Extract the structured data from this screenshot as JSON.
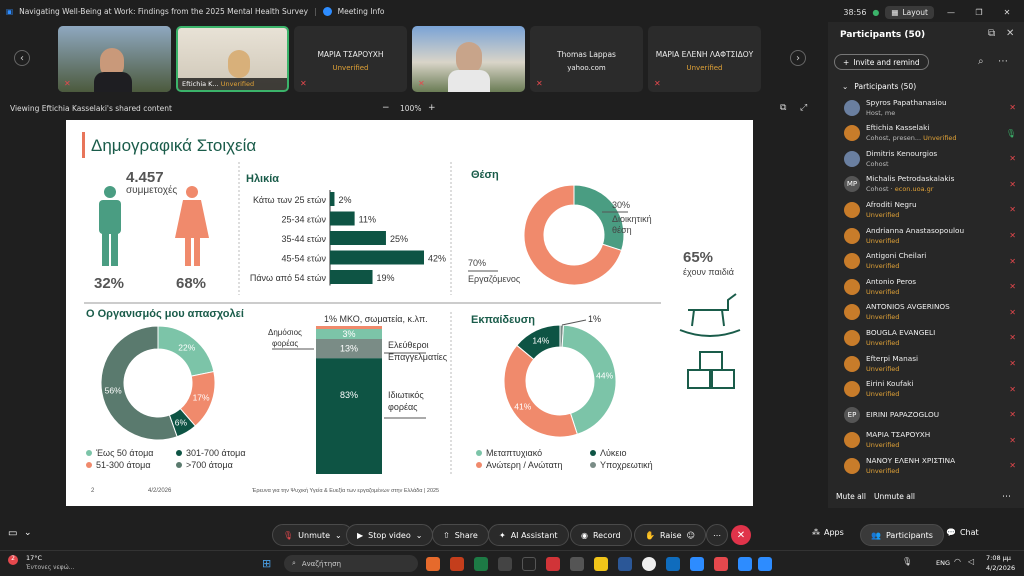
{
  "titlebar": {
    "meeting_title": "Navigating Well-Being at Work: Findings from the 2025 Mental Health Survey",
    "meeting_info": "Meeting Info"
  },
  "window": {
    "time": "38:56",
    "layout_label": "Layout"
  },
  "gallery": {
    "tiles": [
      {
        "name": "",
        "sub": ""
      },
      {
        "name": "Eftichia K...",
        "sub": "Unverified"
      },
      {
        "name": "ΜΑΡΙΑ ΤΣΑΡΟΥΧΗ",
        "sub": "Unverified"
      },
      {
        "name": "",
        "sub": ""
      },
      {
        "name": "Thomas Lappas",
        "sub": "yahoo.com"
      },
      {
        "name": "ΜΑΡΙΑ ΕΛΕΝΗ ΛΑΦΤΣΙΔΟΥ",
        "sub": "Unverified"
      }
    ]
  },
  "share": {
    "viewing": "Viewing Eftichia Kasselaki's shared content",
    "zoom": "100%"
  },
  "slide": {
    "title": "Δημογραφικά Στοιχεία",
    "participants_count": "4.457",
    "participants_label": "συμμετοχές",
    "male_pct": "32%",
    "female_pct": "68%",
    "age_title": "Ηλικία",
    "position_title": "Θέση",
    "org_title": "Ο Οργανισμός μου απασχολεί",
    "edu_title": "Εκπαίδευση",
    "children_pct": "65%",
    "children_label": "έχουν παιδιά",
    "footer_page": "2",
    "footer_date": "4/2/2026",
    "footer_text": "Έρευνα για την Ψυχική Υγεία & Ευεξία των εργαζομένων στην Ελλάδα | 2025"
  },
  "chart_data": [
    {
      "type": "bar",
      "title": "Ηλικία",
      "categories": [
        "Κάτω των 25 ετών",
        "25-34 ετών",
        "35-44 ετών",
        "45-54 ετών",
        "Πάνω από 54 ετών"
      ],
      "values": [
        2,
        11,
        25,
        42,
        19
      ],
      "labels": [
        "2%",
        "11%",
        "25%",
        "42%",
        "19%"
      ]
    },
    {
      "type": "pie",
      "title": "Θέση",
      "slices": [
        {
          "label": "Διοικητική θέση",
          "value": 30,
          "text": "30%"
        },
        {
          "label": "Εργαζόμενος",
          "value": 70,
          "text": "70%"
        }
      ]
    },
    {
      "type": "pie",
      "title": "Ο Οργανισμός μου απασχολεί",
      "slices": [
        {
          "label": "Έως 50 άτομα",
          "value": 22,
          "text": "22%"
        },
        {
          "label": "51-300 άτομα",
          "value": 17,
          "text": "17%"
        },
        {
          "label": "301-700 άτομα",
          "value": 6,
          "text": "6%"
        },
        {
          "label": ">700 άτομα",
          "value": 56,
          "text": "56%"
        }
      ]
    },
    {
      "type": "bar",
      "title": "sector",
      "segments": [
        {
          "label": "ΜΚΟ, σωματεία, κ.λπ.",
          "value": 1,
          "text": "1%"
        },
        {
          "label": "Δημόσιος φορέας",
          "value": 3,
          "text": "3%"
        },
        {
          "label": "Ελεύθεροι Επαγγελματίες",
          "value": 13,
          "text": "13%"
        },
        {
          "label": "Ιδιωτικός φορέας",
          "value": 83,
          "text": "83%"
        }
      ]
    },
    {
      "type": "pie",
      "title": "Εκπαίδευση",
      "slices": [
        {
          "label": "Υποχρεωτική",
          "value": 1,
          "text": "1%"
        },
        {
          "label": "Μεταπτυχιακό",
          "value": 44,
          "text": "44%"
        },
        {
          "label": "Ανώτερη / Ανώτατη",
          "value": 41,
          "text": "41%"
        },
        {
          "label": "Λύκειο",
          "value": 14,
          "text": "14%"
        }
      ]
    }
  ],
  "panel": {
    "title": "Participants (50)",
    "invite": "Invite and remind",
    "section": "Participants (50)",
    "mute_all": "Mute all",
    "unmute_all": "Unmute all",
    "people": [
      {
        "name": "Spyros Papathanasiou",
        "sub": "Host, me",
        "unv": ""
      },
      {
        "name": "Eftichia Kasselaki",
        "sub": "Cohost, presen...",
        "unv": "Unverified"
      },
      {
        "name": "Dimitris Kenourgios",
        "sub": "Cohost",
        "unv": ""
      },
      {
        "name": "Michalis Petrodaskalakis",
        "sub": "Cohost · ",
        "unv": "econ.uoa.gr",
        "init": "MP"
      },
      {
        "name": "Afroditi Negru",
        "sub": "",
        "unv": "Unverified"
      },
      {
        "name": "Andrianna Anastasopoulou",
        "sub": "",
        "unv": "Unverified"
      },
      {
        "name": "Antigoni Cheilari",
        "sub": "",
        "unv": "Unverified"
      },
      {
        "name": "Antonio Peros",
        "sub": "",
        "unv": "Unverified"
      },
      {
        "name": "ANTONIOS AVGERINOS",
        "sub": "",
        "unv": "Unverified"
      },
      {
        "name": "BOUGLA EVANGELI",
        "sub": "",
        "unv": "Unverified"
      },
      {
        "name": "Efterpi Manasi",
        "sub": "",
        "unv": "Unverified"
      },
      {
        "name": "Eirini Koufaki",
        "sub": "",
        "unv": "Unverified"
      },
      {
        "name": "EIRINI PAPAZOGLOU",
        "sub": "",
        "unv": "",
        "init": "EP"
      },
      {
        "name": "ΜΑΡΙΑ ΤΣΑΡΟΥΧΗ",
        "sub": "",
        "unv": "Unverified"
      },
      {
        "name": "ΝΑΝΟΥ ΕΛΕΝΗ ΧΡΙΣΤΙΝΑ",
        "sub": "",
        "unv": "Unverified"
      }
    ]
  },
  "toolbar": {
    "unmute": "Unmute",
    "stop_video": "Stop video",
    "share": "Share",
    "ai": "AI Assistant",
    "record": "Record",
    "raise": "Raise",
    "apps": "Apps",
    "participants": "Participants",
    "chat": "Chat"
  },
  "taskbar": {
    "temp": "17°C",
    "weather": "Έντονες νεφώ...",
    "search": "Αναζήτηση",
    "lang": "ENG",
    "time": "7:08 μμ",
    "date": "4/2/2026",
    "badge": "2"
  }
}
